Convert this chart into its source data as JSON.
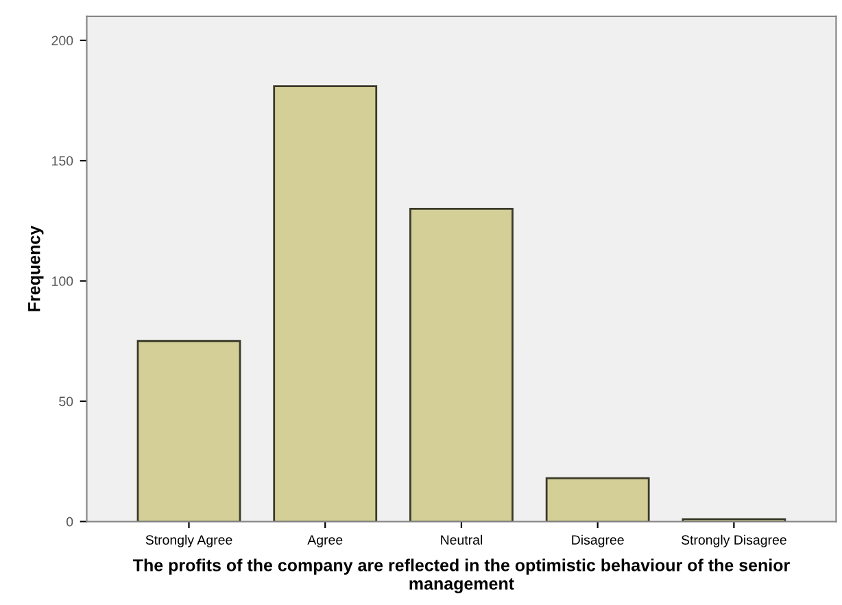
{
  "chart_data": {
    "type": "bar",
    "xlabel": "The profits of the company are reflected in the optimistic behaviour of the senior management",
    "ylabel": "Frequency",
    "categories": [
      "Strongly Agree",
      "Agree",
      "Neutral",
      "Disagree",
      "Strongly Disagree"
    ],
    "values": [
      75,
      181,
      130,
      18,
      1
    ],
    "color": "#d3cf96",
    "ylim": [
      0,
      210
    ],
    "yticks": [
      0,
      50,
      100,
      150,
      200
    ],
    "grid": false
  }
}
